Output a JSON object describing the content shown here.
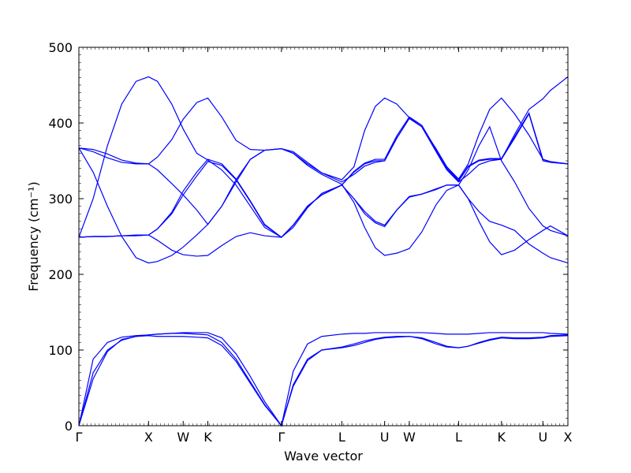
{
  "chart_data": {
    "type": "line",
    "title": "",
    "xlabel": "Wave vector",
    "ylabel": "Frequency (cm⁻¹)",
    "ylim": [
      0,
      500
    ],
    "yticks": [
      0,
      100,
      200,
      300,
      400,
      500
    ],
    "grid": false,
    "legend": "none",
    "line_color": "#0000ff",
    "x_ticks": [
      {
        "label": "Γ",
        "x": 0
      },
      {
        "label": "X",
        "x": 0.0975
      },
      {
        "label": "W",
        "x": 0.146
      },
      {
        "label": "K",
        "x": 0.1805
      },
      {
        "label": "Γ",
        "x": 0.2835
      },
      {
        "label": "L",
        "x": 0.368
      },
      {
        "label": "U",
        "x": 0.428
      },
      {
        "label": "W",
        "x": 0.4625
      },
      {
        "label": "L",
        "x": 0.5315
      },
      {
        "label": "K",
        "x": 0.5915
      },
      {
        "label": "U",
        "x": 0.6495
      },
      {
        "label": "X",
        "x": 0.6845
      }
    ],
    "x_range": [
      0,
      0.6845
    ],
    "series": [
      {
        "x": [
          0,
          0.02,
          0.04,
          0.06,
          0.08,
          0.0975,
          0.11,
          0.13,
          0.146,
          0.165,
          0.1805,
          0.2,
          0.22,
          0.24,
          0.26,
          0.2835,
          0.3,
          0.32,
          0.34,
          0.368,
          0.385,
          0.4,
          0.415,
          0.428,
          0.445,
          0.4625,
          0.48,
          0.5,
          0.515,
          0.5315,
          0.545,
          0.56,
          0.575,
          0.5915,
          0.61,
          0.63,
          0.6495,
          0.66,
          0.6845
        ],
        "y": [
          0,
          70,
          100,
          113,
          118,
          120,
          121,
          122,
          122,
          121,
          120,
          110,
          88,
          58,
          28,
          0,
          52,
          86,
          100,
          103,
          106,
          110,
          114,
          116,
          117,
          118,
          116,
          110,
          105,
          103,
          105,
          109,
          113,
          116,
          115,
          115,
          116,
          118,
          119
        ]
      },
      {
        "x": [
          0,
          0.02,
          0.04,
          0.06,
          0.08,
          0.0975,
          0.11,
          0.13,
          0.146,
          0.165,
          0.1805,
          0.2,
          0.22,
          0.24,
          0.26,
          0.2835,
          0.3,
          0.32,
          0.34,
          0.368,
          0.385,
          0.4,
          0.415,
          0.428,
          0.445,
          0.4625,
          0.48,
          0.5,
          0.515,
          0.5315,
          0.545,
          0.56,
          0.575,
          0.5915,
          0.61,
          0.63,
          0.6495,
          0.66,
          0.6845
        ],
        "y": [
          0,
          62,
          98,
          114,
          118,
          119,
          118,
          118,
          118,
          117,
          116,
          106,
          85,
          56,
          27,
          0,
          54,
          88,
          100,
          104,
          108,
          112,
          115,
          117,
          118,
          118,
          115,
          108,
          104,
          103,
          105,
          110,
          114,
          117,
          116,
          116,
          117,
          119,
          120
        ]
      },
      {
        "x": [
          0,
          0.02,
          0.04,
          0.06,
          0.08,
          0.0975,
          0.11,
          0.13,
          0.146,
          0.165,
          0.1805,
          0.2,
          0.22,
          0.24,
          0.26,
          0.2835,
          0.3,
          0.32,
          0.34,
          0.368,
          0.385,
          0.4,
          0.415,
          0.428,
          0.445,
          0.4625,
          0.48,
          0.5,
          0.515,
          0.5315,
          0.545,
          0.56,
          0.575,
          0.5915,
          0.61,
          0.63,
          0.6495,
          0.66,
          0.6845
        ],
        "y": [
          0,
          88,
          110,
          117,
          119,
          120,
          121,
          122,
          123,
          123,
          123,
          116,
          95,
          65,
          32,
          0,
          72,
          108,
          118,
          121,
          122,
          122,
          123,
          123,
          123,
          123,
          123,
          122,
          121,
          121,
          121,
          122,
          123,
          123,
          123,
          123,
          123,
          122,
          121
        ]
      },
      {
        "x": [
          0,
          0.02,
          0.04,
          0.06,
          0.08,
          0.0975,
          0.11,
          0.13,
          0.146,
          0.165,
          0.1805,
          0.2,
          0.22,
          0.24,
          0.26,
          0.2835,
          0.3,
          0.32,
          0.34,
          0.368,
          0.385,
          0.4,
          0.415,
          0.428,
          0.445,
          0.4625,
          0.48,
          0.5,
          0.515,
          0.5315,
          0.545,
          0.56,
          0.575,
          0.5915,
          0.61,
          0.63,
          0.6495,
          0.66,
          0.6845
        ],
        "y": [
          249,
          300,
          370,
          425,
          455,
          461,
          455,
          425,
          392,
          360,
          351,
          338,
          318,
          290,
          262,
          249,
          265,
          290,
          305,
          318,
          300,
          280,
          268,
          263,
          285,
          303,
          306,
          313,
          318,
          318,
          338,
          370,
          395,
          350,
          322,
          287,
          264,
          258,
          251
        ]
      },
      {
        "x": [
          0,
          0.02,
          0.04,
          0.06,
          0.08,
          0.0975,
          0.11,
          0.13,
          0.146,
          0.165,
          0.1805,
          0.2,
          0.22,
          0.24,
          0.26,
          0.2835,
          0.3,
          0.32,
          0.34,
          0.368,
          0.385,
          0.4,
          0.415,
          0.428,
          0.445,
          0.4625,
          0.48,
          0.5,
          0.515,
          0.5315,
          0.545,
          0.56,
          0.575,
          0.5915,
          0.61,
          0.63,
          0.6495,
          0.66,
          0.6845
        ],
        "y": [
          367,
          362,
          354,
          348,
          346,
          346,
          355,
          378,
          405,
          427,
          433,
          408,
          377,
          365,
          364,
          366,
          360,
          346,
          334,
          325,
          342,
          390,
          422,
          433,
          425,
          407,
          395,
          366,
          342,
          326,
          346,
          385,
          418,
          433,
          412,
          384,
          352,
          348,
          346
        ]
      },
      {
        "x": [
          0,
          0.02,
          0.04,
          0.06,
          0.08,
          0.0975,
          0.11,
          0.13,
          0.146,
          0.165,
          0.1805,
          0.2,
          0.22,
          0.24,
          0.26,
          0.2835,
          0.3,
          0.32,
          0.34,
          0.368,
          0.385,
          0.4,
          0.415,
          0.428,
          0.445,
          0.4625,
          0.48,
          0.5,
          0.515,
          0.5315,
          0.545,
          0.56,
          0.575,
          0.5915,
          0.61,
          0.63,
          0.6495,
          0.66,
          0.6845
        ],
        "y": [
          367,
          365,
          359,
          351,
          347,
          346,
          338,
          320,
          305,
          285,
          266,
          290,
          325,
          352,
          364,
          366,
          362,
          348,
          334,
          322,
          332,
          343,
          348,
          350,
          380,
          406,
          395,
          362,
          338,
          322,
          332,
          345,
          350,
          352,
          385,
          418,
          432,
          443,
          461
        ]
      },
      {
        "x": [
          0,
          0.02,
          0.04,
          0.06,
          0.08,
          0.0975,
          0.11,
          0.13,
          0.146,
          0.165,
          0.1805,
          0.2,
          0.22,
          0.24,
          0.26,
          0.2835,
          0.3,
          0.32,
          0.34,
          0.368,
          0.385,
          0.4,
          0.415,
          0.428,
          0.445,
          0.4625,
          0.48,
          0.5,
          0.515,
          0.5315,
          0.545,
          0.56,
          0.575,
          0.5915,
          0.61,
          0.63,
          0.6495,
          0.66,
          0.6845
        ],
        "y": [
          367,
          335,
          290,
          250,
          222,
          215,
          217,
          225,
          236,
          252,
          266,
          290,
          322,
          352,
          364,
          366,
          360,
          344,
          332,
          319,
          295,
          262,
          235,
          225,
          228,
          234,
          256,
          292,
          311,
          318,
          300,
          270,
          243,
          226,
          232,
          246,
          258,
          264,
          251
        ]
      },
      {
        "x": [
          0,
          0.02,
          0.04,
          0.06,
          0.08,
          0.0975,
          0.11,
          0.13,
          0.146,
          0.165,
          0.1805,
          0.2,
          0.22,
          0.24,
          0.26,
          0.2835,
          0.3,
          0.32,
          0.34,
          0.368,
          0.385,
          0.4,
          0.415,
          0.428,
          0.445,
          0.4625,
          0.48,
          0.5,
          0.515,
          0.5315,
          0.545,
          0.56,
          0.575,
          0.5915,
          0.61,
          0.63,
          0.6495,
          0.66,
          0.6845
        ],
        "y": [
          249,
          250,
          250,
          251,
          252,
          252,
          245,
          232,
          226,
          224,
          225,
          238,
          250,
          255,
          251,
          249,
          262,
          288,
          307,
          318,
          300,
          283,
          270,
          265,
          285,
          302,
          306,
          312,
          318,
          318,
          300,
          283,
          270,
          265,
          258,
          240,
          228,
          222,
          215
        ]
      },
      {
        "x": [
          0,
          0.02,
          0.04,
          0.06,
          0.08,
          0.0975,
          0.11,
          0.13,
          0.146,
          0.165,
          0.1805,
          0.2,
          0.22,
          0.24,
          0.26,
          0.2835,
          0.3,
          0.32,
          0.34,
          0.368,
          0.385,
          0.4,
          0.415,
          0.428,
          0.445,
          0.4625,
          0.48,
          0.5,
          0.515,
          0.5315,
          0.545,
          0.56,
          0.575,
          0.5915,
          0.61,
          0.63,
          0.6495,
          0.66,
          0.6845
        ],
        "y": [
          249,
          250,
          250,
          251,
          251,
          252,
          260,
          280,
          305,
          330,
          349,
          344,
          325,
          296,
          265,
          249,
          265,
          290,
          305,
          318,
          335,
          346,
          350,
          350,
          380,
          406,
          395,
          363,
          340,
          323,
          342,
          350,
          352,
          352,
          380,
          412,
          350,
          348,
          346
        ]
      },
      {
        "x": [
          0,
          0.02,
          0.04,
          0.06,
          0.08,
          0.0975,
          0.11,
          0.13,
          0.146,
          0.165,
          0.1805,
          0.2,
          0.22,
          0.24,
          0.26,
          0.2835,
          0.3,
          0.32,
          0.34,
          0.368,
          0.385,
          0.4,
          0.415,
          0.428,
          0.445,
          0.4625,
          0.48,
          0.5,
          0.515,
          0.5315,
          0.545,
          0.56,
          0.575,
          0.5915,
          0.61,
          0.63,
          0.6495,
          0.66,
          0.6845
        ],
        "y": [
          249,
          250,
          250,
          251,
          251,
          252,
          260,
          282,
          310,
          335,
          352,
          346,
          326,
          297,
          266,
          249,
          265,
          290,
          305,
          318,
          336,
          347,
          352,
          352,
          383,
          408,
          397,
          365,
          342,
          324,
          343,
          351,
          353,
          353,
          382,
          413,
          352,
          349,
          346
        ]
      }
    ]
  }
}
